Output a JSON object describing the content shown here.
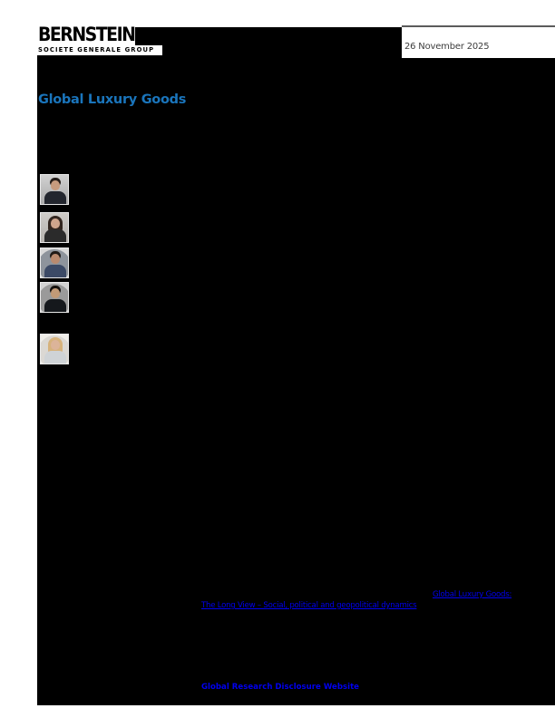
{
  "header": {
    "logo_brand": "BERNSTEIN",
    "logo_group": "SOCIETE GENERALE GROUP",
    "date": "26 November 2025"
  },
  "report": {
    "title": "Global Luxury Goods"
  },
  "analysts": {
    "photos": [
      "male-analyst-headshot-dark-suit",
      "female-analyst-headshot-dark-hair",
      "male-analyst-headshot-navy-suit",
      "male-analyst-headshot-dark-suit-2",
      "female-analyst-headshot-blonde"
    ]
  },
  "links": {
    "inline_ref_1": "Global Luxury Goods:",
    "inline_ref_2": "The Long View – Social, political and geopolitical dynamics",
    "disclosure": "Global Research Disclosure Website"
  },
  "colors": {
    "page_background": "#ffffff",
    "content_background": "#000000",
    "title_blue": "#1a75bc",
    "link_blue": "#0000ee",
    "rule_gray": "#5c5c5c"
  }
}
